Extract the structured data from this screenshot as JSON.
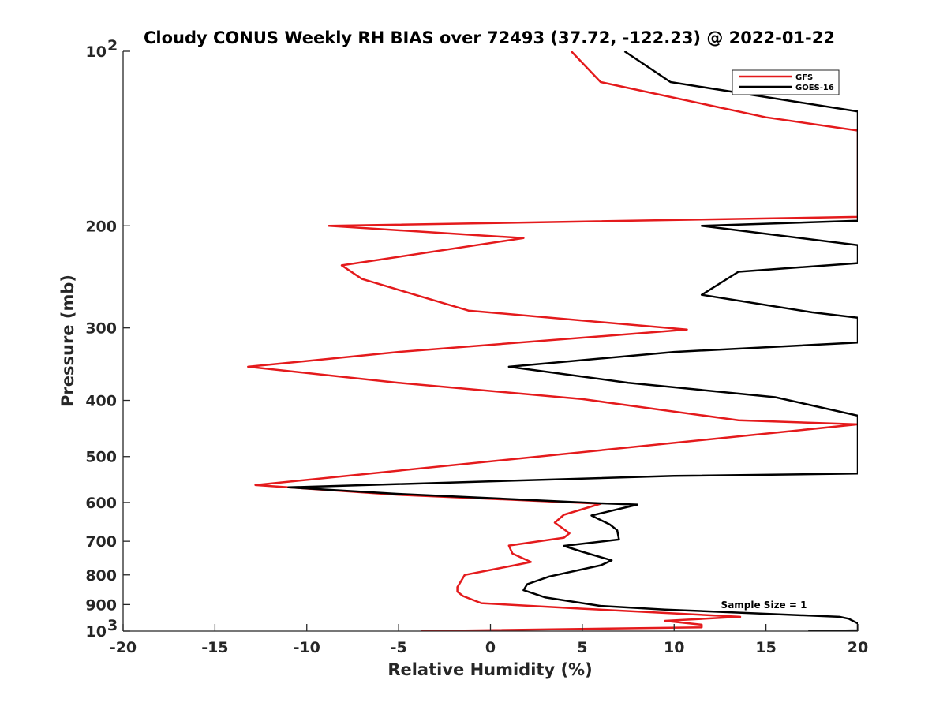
{
  "chart_data": {
    "type": "line",
    "title": "Cloudy CONUS Weekly RH BIAS over 72493 (37.72, -122.23) @ 2022-01-22",
    "xlabel": "Relative Humidity (%)",
    "ylabel": "Pressure (mb)",
    "xlim": [
      -20,
      20
    ],
    "ylim": [
      100,
      1000
    ],
    "y_scale": "log",
    "y_reversed": true,
    "grid": false,
    "legend_position": "top-right",
    "annotation": "Sample Size = 1",
    "x_ticks": [
      {
        "value": -20,
        "label": "-20"
      },
      {
        "value": -15,
        "label": "-15"
      },
      {
        "value": -10,
        "label": "-10"
      },
      {
        "value": -5,
        "label": "-5"
      },
      {
        "value": 0,
        "label": "0"
      },
      {
        "value": 5,
        "label": "5"
      },
      {
        "value": 10,
        "label": "10"
      },
      {
        "value": 15,
        "label": "15"
      },
      {
        "value": 20,
        "label": "20"
      }
    ],
    "y_ticks": [
      {
        "value": 100,
        "base": "10",
        "exp": "2"
      },
      {
        "value": 200,
        "base": "200",
        "exp": ""
      },
      {
        "value": 300,
        "base": "300",
        "exp": ""
      },
      {
        "value": 400,
        "base": "400",
        "exp": ""
      },
      {
        "value": 500,
        "base": "500",
        "exp": ""
      },
      {
        "value": 600,
        "base": "600",
        "exp": ""
      },
      {
        "value": 700,
        "base": "700",
        "exp": ""
      },
      {
        "value": 800,
        "base": "800",
        "exp": ""
      },
      {
        "value": 900,
        "base": "900",
        "exp": ""
      },
      {
        "value": 1000,
        "base": "10",
        "exp": "3"
      }
    ],
    "series": [
      {
        "name": "GFS",
        "color": "#e41a1c",
        "points": [
          [
            4.4,
            100
          ],
          [
            6.0,
            113
          ],
          [
            15.0,
            130
          ],
          [
            20.0,
            137
          ],
          [
            20.0,
            193
          ],
          [
            -8.8,
            200
          ],
          [
            1.8,
            210
          ],
          [
            -8.1,
            234
          ],
          [
            -7.0,
            247
          ],
          [
            -1.2,
            280
          ],
          [
            10.7,
            302
          ],
          [
            -5.0,
            330
          ],
          [
            -13.2,
            350
          ],
          [
            -5.0,
            373
          ],
          [
            5.0,
            398
          ],
          [
            13.5,
            433
          ],
          [
            20.0,
            440
          ],
          [
            -12.8,
            560
          ],
          [
            -11.0,
            565
          ],
          [
            -5.0,
            582
          ],
          [
            6.0,
            603
          ],
          [
            4.0,
            630
          ],
          [
            3.5,
            650
          ],
          [
            4.3,
            678
          ],
          [
            4.0,
            690
          ],
          [
            1.0,
            712
          ],
          [
            1.2,
            735
          ],
          [
            2.2,
            760
          ],
          [
            1.3,
            770
          ],
          [
            -1.4,
            800
          ],
          [
            -1.8,
            840
          ],
          [
            -1.8,
            855
          ],
          [
            -1.5,
            870
          ],
          [
            -0.5,
            895
          ],
          [
            5.0,
            915
          ],
          [
            13.6,
            945
          ],
          [
            9.5,
            960
          ],
          [
            11.5,
            975
          ],
          [
            11.5,
            985
          ],
          [
            -3.8,
            1000
          ]
        ]
      },
      {
        "name": "GOES-16",
        "color": "#000000",
        "points": [
          [
            7.3,
            100
          ],
          [
            9.8,
            113
          ],
          [
            20.0,
            127
          ],
          [
            20.0,
            196
          ],
          [
            11.5,
            200
          ],
          [
            20.0,
            216
          ],
          [
            20.0,
            232
          ],
          [
            13.5,
            240
          ],
          [
            11.5,
            263
          ],
          [
            17.5,
            282
          ],
          [
            20.0,
            288
          ],
          [
            20.0,
            318
          ],
          [
            10.0,
            330
          ],
          [
            1.0,
            350
          ],
          [
            7.5,
            373
          ],
          [
            15.5,
            395
          ],
          [
            20.0,
            425
          ],
          [
            20.0,
            535
          ],
          [
            10.0,
            540
          ],
          [
            -11.0,
            565
          ],
          [
            -5.0,
            580
          ],
          [
            6.0,
            602
          ],
          [
            8.0,
            605
          ],
          [
            5.5,
            632
          ],
          [
            6.5,
            655
          ],
          [
            6.9,
            670
          ],
          [
            7.0,
            695
          ],
          [
            4.0,
            713
          ],
          [
            5.0,
            730
          ],
          [
            6.6,
            755
          ],
          [
            6.0,
            770
          ],
          [
            3.2,
            805
          ],
          [
            2.0,
            830
          ],
          [
            1.8,
            850
          ],
          [
            3.0,
            875
          ],
          [
            6.0,
            905
          ],
          [
            9.5,
            918
          ],
          [
            19.0,
            945
          ],
          [
            19.5,
            952
          ],
          [
            20.0,
            970
          ],
          [
            20.0,
            997
          ],
          [
            17.3,
            1000
          ]
        ]
      }
    ]
  }
}
